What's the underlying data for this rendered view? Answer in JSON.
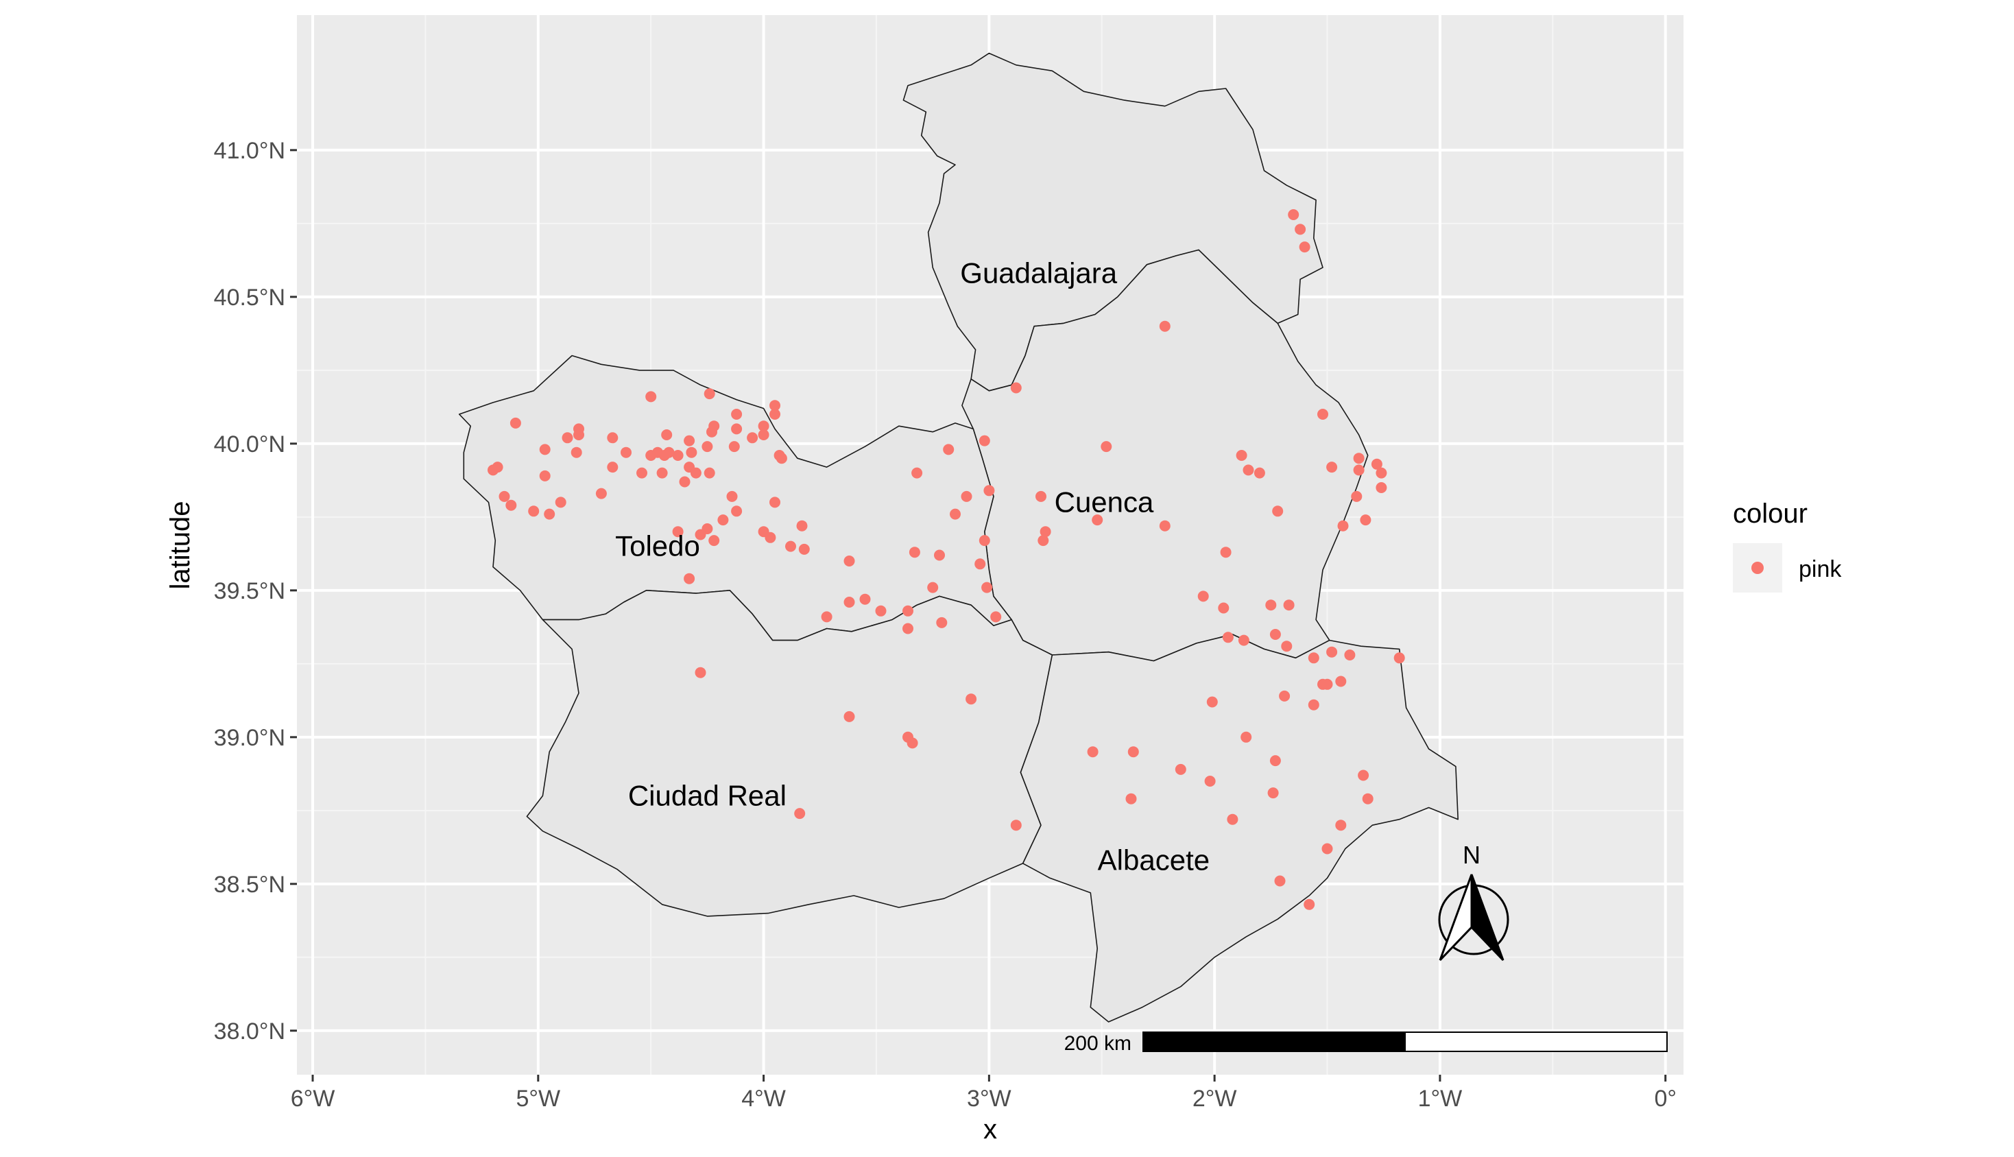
{
  "axes": {
    "x_title": "x",
    "y_title": "latitude",
    "x_ticks": [
      {
        "value": -6,
        "label": "6°W"
      },
      {
        "value": -5,
        "label": "5°W"
      },
      {
        "value": -4,
        "label": "4°W"
      },
      {
        "value": -3,
        "label": "3°W"
      },
      {
        "value": -2,
        "label": "2°W"
      },
      {
        "value": -1,
        "label": "1°W"
      },
      {
        "value": 0,
        "label": "0°"
      }
    ],
    "y_ticks": [
      {
        "value": 38.0,
        "label": "38.0°N"
      },
      {
        "value": 38.5,
        "label": "38.5°N"
      },
      {
        "value": 39.0,
        "label": "39.0°N"
      },
      {
        "value": 39.5,
        "label": "39.5°N"
      },
      {
        "value": 40.0,
        "label": "40.0°N"
      },
      {
        "value": 40.5,
        "label": "40.5°N"
      },
      {
        "value": 41.0,
        "label": "41.0°N"
      }
    ],
    "xlim": [
      -6.07,
      0.08
    ],
    "ylim": [
      37.85,
      41.46
    ]
  },
  "legend": {
    "title": "colour",
    "entries": [
      {
        "label": "pink",
        "color": "#F8766D"
      }
    ],
    "position": "right"
  },
  "regions": [
    {
      "name": "Guadalajara",
      "label_lon": -2.78,
      "label_lat": 40.58,
      "boundary": [
        [
          -3.15,
          40.95
        ],
        [
          -3.23,
          40.98
        ],
        [
          -3.3,
          41.05
        ],
        [
          -3.28,
          41.13
        ],
        [
          -3.38,
          41.17
        ],
        [
          -3.36,
          41.22
        ],
        [
          -3.24,
          41.25
        ],
        [
          -3.08,
          41.29
        ],
        [
          -3.0,
          41.33
        ],
        [
          -2.88,
          41.29
        ],
        [
          -2.72,
          41.27
        ],
        [
          -2.58,
          41.2
        ],
        [
          -2.4,
          41.17
        ],
        [
          -2.22,
          41.15
        ],
        [
          -2.07,
          41.2
        ],
        [
          -1.95,
          41.21
        ],
        [
          -1.83,
          41.07
        ],
        [
          -1.78,
          40.93
        ],
        [
          -1.68,
          40.88
        ],
        [
          -1.55,
          40.83
        ],
        [
          -1.56,
          40.7
        ],
        [
          -1.52,
          40.6
        ],
        [
          -1.62,
          40.56
        ],
        [
          -1.63,
          40.44
        ],
        [
          -1.72,
          40.41
        ],
        [
          -1.83,
          40.48
        ],
        [
          -1.95,
          40.57
        ],
        [
          -2.07,
          40.66
        ],
        [
          -2.17,
          40.64
        ],
        [
          -2.3,
          40.61
        ],
        [
          -2.43,
          40.5
        ],
        [
          -2.53,
          40.44
        ],
        [
          -2.67,
          40.41
        ],
        [
          -2.8,
          40.4
        ],
        [
          -2.84,
          40.3
        ],
        [
          -2.9,
          40.2
        ],
        [
          -3.0,
          40.18
        ],
        [
          -3.08,
          40.22
        ],
        [
          -3.06,
          40.32
        ],
        [
          -3.14,
          40.4
        ],
        [
          -3.18,
          40.47
        ],
        [
          -3.25,
          40.6
        ],
        [
          -3.27,
          40.72
        ],
        [
          -3.22,
          40.82
        ],
        [
          -3.2,
          40.92
        ]
      ]
    },
    {
      "name": "Cuenca",
      "label_lon": -2.49,
      "label_lat": 39.8,
      "boundary": [
        [
          -3.08,
          40.22
        ],
        [
          -3.0,
          40.18
        ],
        [
          -2.9,
          40.2
        ],
        [
          -2.84,
          40.3
        ],
        [
          -2.8,
          40.4
        ],
        [
          -2.67,
          40.41
        ],
        [
          -2.53,
          40.44
        ],
        [
          -2.43,
          40.5
        ],
        [
          -2.3,
          40.61
        ],
        [
          -2.17,
          40.64
        ],
        [
          -2.07,
          40.66
        ],
        [
          -1.95,
          40.57
        ],
        [
          -1.83,
          40.48
        ],
        [
          -1.72,
          40.41
        ],
        [
          -1.63,
          40.28
        ],
        [
          -1.55,
          40.2
        ],
        [
          -1.45,
          40.14
        ],
        [
          -1.36,
          40.03
        ],
        [
          -1.32,
          39.96
        ],
        [
          -1.37,
          39.85
        ],
        [
          -1.43,
          39.73
        ],
        [
          -1.52,
          39.57
        ],
        [
          -1.55,
          39.4
        ],
        [
          -1.49,
          39.33
        ],
        [
          -1.64,
          39.27
        ],
        [
          -1.78,
          39.3
        ],
        [
          -1.92,
          39.35
        ],
        [
          -2.08,
          39.32
        ],
        [
          -2.27,
          39.26
        ],
        [
          -2.47,
          39.29
        ],
        [
          -2.72,
          39.28
        ],
        [
          -2.85,
          39.33
        ],
        [
          -2.9,
          39.4
        ],
        [
          -2.98,
          39.48
        ],
        [
          -3.0,
          39.57
        ],
        [
          -3.02,
          39.7
        ],
        [
          -2.98,
          39.82
        ],
        [
          -3.03,
          39.95
        ],
        [
          -3.07,
          40.05
        ],
        [
          -3.12,
          40.13
        ]
      ]
    },
    {
      "name": "Toledo",
      "label_lon": -4.47,
      "label_lat": 39.65,
      "boundary": [
        [
          -5.35,
          40.1
        ],
        [
          -5.3,
          40.06
        ],
        [
          -5.33,
          39.97
        ],
        [
          -5.33,
          39.88
        ],
        [
          -5.22,
          39.8
        ],
        [
          -5.19,
          39.67
        ],
        [
          -5.2,
          39.58
        ],
        [
          -5.08,
          39.5
        ],
        [
          -4.98,
          39.4
        ],
        [
          -4.82,
          39.4
        ],
        [
          -4.7,
          39.42
        ],
        [
          -4.62,
          39.46
        ],
        [
          -4.52,
          39.5
        ],
        [
          -4.3,
          39.49
        ],
        [
          -4.15,
          39.5
        ],
        [
          -4.05,
          39.42
        ],
        [
          -3.96,
          39.33
        ],
        [
          -3.85,
          39.33
        ],
        [
          -3.72,
          39.37
        ],
        [
          -3.61,
          39.36
        ],
        [
          -3.43,
          39.4
        ],
        [
          -3.32,
          39.45
        ],
        [
          -3.22,
          39.48
        ],
        [
          -3.08,
          39.45
        ],
        [
          -2.98,
          39.38
        ],
        [
          -2.9,
          39.4
        ],
        [
          -2.98,
          39.48
        ],
        [
          -3.0,
          39.57
        ],
        [
          -3.02,
          39.7
        ],
        [
          -2.98,
          39.82
        ],
        [
          -3.03,
          39.95
        ],
        [
          -3.07,
          40.05
        ],
        [
          -3.15,
          40.07
        ],
        [
          -3.25,
          40.04
        ],
        [
          -3.4,
          40.06
        ],
        [
          -3.55,
          39.99
        ],
        [
          -3.72,
          39.92
        ],
        [
          -3.85,
          39.95
        ],
        [
          -3.95,
          40.05
        ],
        [
          -4.0,
          40.12
        ],
        [
          -4.12,
          40.15
        ],
        [
          -4.28,
          40.2
        ],
        [
          -4.4,
          40.25
        ],
        [
          -4.55,
          40.25
        ],
        [
          -4.72,
          40.27
        ],
        [
          -4.85,
          40.3
        ],
        [
          -5.02,
          40.18
        ],
        [
          -5.2,
          40.14
        ]
      ]
    },
    {
      "name": "Ciudad Real",
      "label_lon": -4.25,
      "label_lat": 38.8,
      "boundary": [
        [
          -4.98,
          39.4
        ],
        [
          -4.85,
          39.3
        ],
        [
          -4.82,
          39.15
        ],
        [
          -4.88,
          39.05
        ],
        [
          -4.95,
          38.95
        ],
        [
          -4.98,
          38.8
        ],
        [
          -5.05,
          38.73
        ],
        [
          -4.98,
          38.68
        ],
        [
          -4.82,
          38.62
        ],
        [
          -4.65,
          38.55
        ],
        [
          -4.45,
          38.43
        ],
        [
          -4.25,
          38.39
        ],
        [
          -3.98,
          38.4
        ],
        [
          -3.8,
          38.43
        ],
        [
          -3.6,
          38.46
        ],
        [
          -3.4,
          38.42
        ],
        [
          -3.2,
          38.45
        ],
        [
          -3.0,
          38.52
        ],
        [
          -2.85,
          38.57
        ],
        [
          -2.77,
          38.7
        ],
        [
          -2.86,
          38.88
        ],
        [
          -2.78,
          39.05
        ],
        [
          -2.72,
          39.28
        ],
        [
          -2.85,
          39.33
        ],
        [
          -2.9,
          39.4
        ],
        [
          -2.98,
          39.38
        ],
        [
          -3.08,
          39.45
        ],
        [
          -3.22,
          39.48
        ],
        [
          -3.32,
          39.45
        ],
        [
          -3.43,
          39.4
        ],
        [
          -3.61,
          39.36
        ],
        [
          -3.72,
          39.37
        ],
        [
          -3.85,
          39.33
        ],
        [
          -3.96,
          39.33
        ],
        [
          -4.05,
          39.42
        ],
        [
          -4.15,
          39.5
        ],
        [
          -4.3,
          39.49
        ],
        [
          -4.52,
          39.5
        ],
        [
          -4.62,
          39.46
        ],
        [
          -4.7,
          39.42
        ],
        [
          -4.82,
          39.4
        ]
      ]
    },
    {
      "name": "Albacete",
      "label_lon": -2.27,
      "label_lat": 38.58,
      "boundary": [
        [
          -2.72,
          39.28
        ],
        [
          -2.47,
          39.29
        ],
        [
          -2.27,
          39.26
        ],
        [
          -2.08,
          39.32
        ],
        [
          -1.92,
          39.35
        ],
        [
          -1.78,
          39.3
        ],
        [
          -1.64,
          39.27
        ],
        [
          -1.49,
          39.33
        ],
        [
          -1.35,
          39.31
        ],
        [
          -1.18,
          39.3
        ],
        [
          -1.15,
          39.1
        ],
        [
          -1.05,
          38.96
        ],
        [
          -0.93,
          38.9
        ],
        [
          -0.92,
          38.72
        ],
        [
          -1.05,
          38.76
        ],
        [
          -1.18,
          38.72
        ],
        [
          -1.3,
          38.7
        ],
        [
          -1.42,
          38.62
        ],
        [
          -1.5,
          38.52
        ],
        [
          -1.58,
          38.46
        ],
        [
          -1.72,
          38.38
        ],
        [
          -1.86,
          38.32
        ],
        [
          -2.0,
          38.25
        ],
        [
          -2.15,
          38.15
        ],
        [
          -2.32,
          38.08
        ],
        [
          -2.47,
          38.03
        ],
        [
          -2.55,
          38.08
        ],
        [
          -2.52,
          38.28
        ],
        [
          -2.55,
          38.47
        ],
        [
          -2.73,
          38.52
        ],
        [
          -2.85,
          38.57
        ],
        [
          -2.77,
          38.7
        ],
        [
          -2.86,
          38.88
        ],
        [
          -2.78,
          39.05
        ]
      ]
    }
  ],
  "points": {
    "color": "#F8766D",
    "coords": [
      [
        -1.65,
        40.78
      ],
      [
        -1.62,
        40.73
      ],
      [
        -1.6,
        40.67
      ],
      [
        -2.22,
        40.4
      ],
      [
        -2.88,
        40.19
      ],
      [
        -1.52,
        40.1
      ],
      [
        -5.1,
        40.07
      ],
      [
        -4.97,
        39.98
      ],
      [
        -4.82,
        40.05
      ],
      [
        -4.82,
        40.03
      ],
      [
        -4.87,
        40.02
      ],
      [
        -4.67,
        40.02
      ],
      [
        -4.5,
        40.16
      ],
      [
        -4.24,
        40.17
      ],
      [
        -4.12,
        40.1
      ],
      [
        -3.95,
        40.13
      ],
      [
        -3.95,
        40.1
      ],
      [
        -4.22,
        40.06
      ],
      [
        -4.23,
        40.04
      ],
      [
        -4.12,
        40.05
      ],
      [
        -4.0,
        40.06
      ],
      [
        -4.0,
        40.03
      ],
      [
        -4.05,
        40.02
      ],
      [
        -4.43,
        40.03
      ],
      [
        -4.33,
        40.01
      ],
      [
        -4.25,
        39.99
      ],
      [
        -4.13,
        39.99
      ],
      [
        -4.61,
        39.97
      ],
      [
        -4.83,
        39.97
      ],
      [
        -4.47,
        39.97
      ],
      [
        -4.42,
        39.97
      ],
      [
        -4.5,
        39.96
      ],
      [
        -4.38,
        39.96
      ],
      [
        -4.44,
        39.96
      ],
      [
        -4.32,
        39.97
      ],
      [
        -3.93,
        39.96
      ],
      [
        -4.33,
        39.92
      ],
      [
        -4.3,
        39.9
      ],
      [
        -4.24,
        39.9
      ],
      [
        -4.35,
        39.87
      ],
      [
        -4.54,
        39.9
      ],
      [
        -4.67,
        39.92
      ],
      [
        -4.45,
        39.9
      ],
      [
        -5.2,
        39.91
      ],
      [
        -5.18,
        39.92
      ],
      [
        -4.97,
        39.89
      ],
      [
        -3.92,
        39.95
      ],
      [
        -5.15,
        39.82
      ],
      [
        -5.12,
        39.79
      ],
      [
        -4.9,
        39.8
      ],
      [
        -4.72,
        39.83
      ],
      [
        -4.14,
        39.82
      ],
      [
        -4.12,
        39.77
      ],
      [
        -4.18,
        39.74
      ],
      [
        -3.95,
        39.8
      ],
      [
        -5.02,
        39.77
      ],
      [
        -4.95,
        39.76
      ],
      [
        -4.38,
        39.7
      ],
      [
        -4.25,
        39.71
      ],
      [
        -4.28,
        39.69
      ],
      [
        -4.22,
        39.67
      ],
      [
        -4.0,
        39.7
      ],
      [
        -3.97,
        39.68
      ],
      [
        -3.83,
        39.72
      ],
      [
        -3.88,
        39.65
      ],
      [
        -3.82,
        39.64
      ],
      [
        -4.33,
        39.54
      ],
      [
        -3.18,
        39.98
      ],
      [
        -3.02,
        40.01
      ],
      [
        -3.32,
        39.9
      ],
      [
        -3.1,
        39.82
      ],
      [
        -3.0,
        39.84
      ],
      [
        -2.77,
        39.82
      ],
      [
        -2.48,
        39.99
      ],
      [
        -3.15,
        39.76
      ],
      [
        -2.75,
        39.7
      ],
      [
        -2.76,
        39.67
      ],
      [
        -2.52,
        39.74
      ],
      [
        -2.22,
        39.72
      ],
      [
        -3.02,
        39.67
      ],
      [
        -3.33,
        39.63
      ],
      [
        -3.22,
        39.62
      ],
      [
        -3.62,
        39.6
      ],
      [
        -3.04,
        39.59
      ],
      [
        -3.25,
        39.51
      ],
      [
        -3.01,
        39.51
      ],
      [
        -3.62,
        39.46
      ],
      [
        -3.55,
        39.47
      ],
      [
        -3.48,
        39.43
      ],
      [
        -3.36,
        39.43
      ],
      [
        -3.72,
        39.41
      ],
      [
        -2.97,
        39.41
      ],
      [
        -3.21,
        39.39
      ],
      [
        -3.36,
        39.37
      ],
      [
        -1.88,
        39.96
      ],
      [
        -1.85,
        39.91
      ],
      [
        -1.8,
        39.9
      ],
      [
        -1.95,
        39.63
      ],
      [
        -1.72,
        39.77
      ],
      [
        -1.48,
        39.92
      ],
      [
        -1.36,
        39.95
      ],
      [
        -1.36,
        39.91
      ],
      [
        -1.28,
        39.93
      ],
      [
        -1.26,
        39.9
      ],
      [
        -1.26,
        39.85
      ],
      [
        -1.37,
        39.82
      ],
      [
        -1.43,
        39.72
      ],
      [
        -1.33,
        39.74
      ],
      [
        -2.05,
        39.48
      ],
      [
        -1.96,
        39.44
      ],
      [
        -1.75,
        39.45
      ],
      [
        -1.67,
        39.45
      ],
      [
        -1.73,
        39.35
      ],
      [
        -1.94,
        39.34
      ],
      [
        -1.87,
        39.33
      ],
      [
        -1.68,
        39.31
      ],
      [
        -1.48,
        39.29
      ],
      [
        -1.4,
        39.28
      ],
      [
        -1.56,
        39.27
      ],
      [
        -1.52,
        39.18
      ],
      [
        -1.5,
        39.18
      ],
      [
        -1.44,
        39.19
      ],
      [
        -1.18,
        39.27
      ],
      [
        -2.01,
        39.12
      ],
      [
        -1.69,
        39.14
      ],
      [
        -1.56,
        39.11
      ],
      [
        -4.28,
        39.22
      ],
      [
        -3.08,
        39.13
      ],
      [
        -3.62,
        39.07
      ],
      [
        -3.36,
        39.0
      ],
      [
        -3.34,
        38.98
      ],
      [
        -2.54,
        38.95
      ],
      [
        -2.36,
        38.95
      ],
      [
        -1.86,
        39.0
      ],
      [
        -1.73,
        38.92
      ],
      [
        -2.15,
        38.89
      ],
      [
        -2.02,
        38.85
      ],
      [
        -1.34,
        38.87
      ],
      [
        -1.74,
        38.81
      ],
      [
        -2.37,
        38.79
      ],
      [
        -1.32,
        38.79
      ],
      [
        -1.92,
        38.72
      ],
      [
        -3.84,
        38.74
      ],
      [
        -2.88,
        38.7
      ],
      [
        -1.44,
        38.7
      ],
      [
        -1.5,
        38.62
      ],
      [
        -1.71,
        38.51
      ],
      [
        -1.58,
        38.43
      ]
    ]
  },
  "scale_bar": {
    "label": "200 km"
  },
  "north_arrow": {
    "label": "N"
  }
}
